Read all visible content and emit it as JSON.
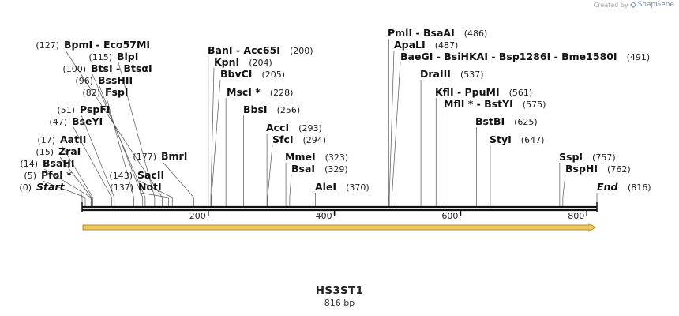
{
  "branding": {
    "prefix": "Created by",
    "name": "SnapGene"
  },
  "sequence": {
    "name": "HS3ST1",
    "length_label": "816 bp",
    "length": 816
  },
  "axis": {
    "ticks": [
      200,
      400,
      600,
      800
    ]
  },
  "feature": {
    "start": 1,
    "end": 816,
    "color": "#f2c75c",
    "direction": "forward"
  },
  "colors": {
    "cut_enzyme": "#111111",
    "pos_label": "#222222",
    "line": "#555555",
    "backbone": "#111111"
  },
  "sites": [
    {
      "name": "Start",
      "pos": "(0)",
      "site": 0,
      "italic": true
    },
    {
      "name": "PfoI *",
      "pos": "(5)",
      "site": 5
    },
    {
      "name": "BsaHI",
      "pos": "(14)",
      "site": 14
    },
    {
      "name": "ZraI",
      "pos": "(15)",
      "site": 15
    },
    {
      "name": "AatII",
      "pos": "(17)",
      "site": 17
    },
    {
      "name": "BseYI",
      "pos": "(47)",
      "site": 47
    },
    {
      "name": "PspFI",
      "pos": "(51)",
      "site": 51
    },
    {
      "name": "FspI",
      "pos": "(82)",
      "site": 82
    },
    {
      "name": "BssHII",
      "pos": "(96)",
      "site": 96
    },
    {
      "name": "BtsI  -  BtsαI",
      "pos": "(100)",
      "site": 100
    },
    {
      "name": "BlpI",
      "pos": "(115)",
      "site": 115
    },
    {
      "name": "BpmI  -  Eco57MI",
      "pos": "(127)",
      "site": 127
    },
    {
      "name": "NotI",
      "pos": "(137)",
      "site": 137
    },
    {
      "name": "SacII",
      "pos": "(143)",
      "site": 143
    },
    {
      "name": "BmrI",
      "pos": "(177)",
      "site": 177
    },
    {
      "name": "BanI  -  Acc65I",
      "pos": "(200)",
      "site": 200
    },
    {
      "name": "KpnI",
      "pos": "(204)",
      "site": 204
    },
    {
      "name": "BbvCI",
      "pos": "(205)",
      "site": 205
    },
    {
      "name": "MscI *",
      "pos": "(228)",
      "site": 228
    },
    {
      "name": "BbsI",
      "pos": "(256)",
      "site": 256
    },
    {
      "name": "AccI",
      "pos": "(293)",
      "site": 293
    },
    {
      "name": "SfcI",
      "pos": "(294)",
      "site": 294
    },
    {
      "name": "MmeI",
      "pos": "(323)",
      "site": 323
    },
    {
      "name": "BsaI",
      "pos": "(329)",
      "site": 329
    },
    {
      "name": "AleI",
      "pos": "(370)",
      "site": 370
    },
    {
      "name": "PmlI  -  BsaAI",
      "pos": "(486)",
      "site": 486
    },
    {
      "name": "ApaLI",
      "pos": "(487)",
      "site": 487
    },
    {
      "name": "BaeGI  -  BsiHKAI  -  Bsp1286I  -  Bme1580I",
      "pos": "(491)",
      "site": 491
    },
    {
      "name": "DraIII",
      "pos": "(537)",
      "site": 537
    },
    {
      "name": "KflI  -  PpuMI",
      "pos": "(561)",
      "site": 561
    },
    {
      "name": "MflI *  -  BstYI",
      "pos": "(575)",
      "site": 575
    },
    {
      "name": "BstBI",
      "pos": "(625)",
      "site": 625
    },
    {
      "name": "StyI",
      "pos": "(647)",
      "site": 647
    },
    {
      "name": "SspI",
      "pos": "(757)",
      "site": 757
    },
    {
      "name": "BspHI",
      "pos": "(762)",
      "site": 762
    },
    {
      "name": "End",
      "pos": "(816)",
      "site": 816,
      "italic": true
    }
  ]
}
